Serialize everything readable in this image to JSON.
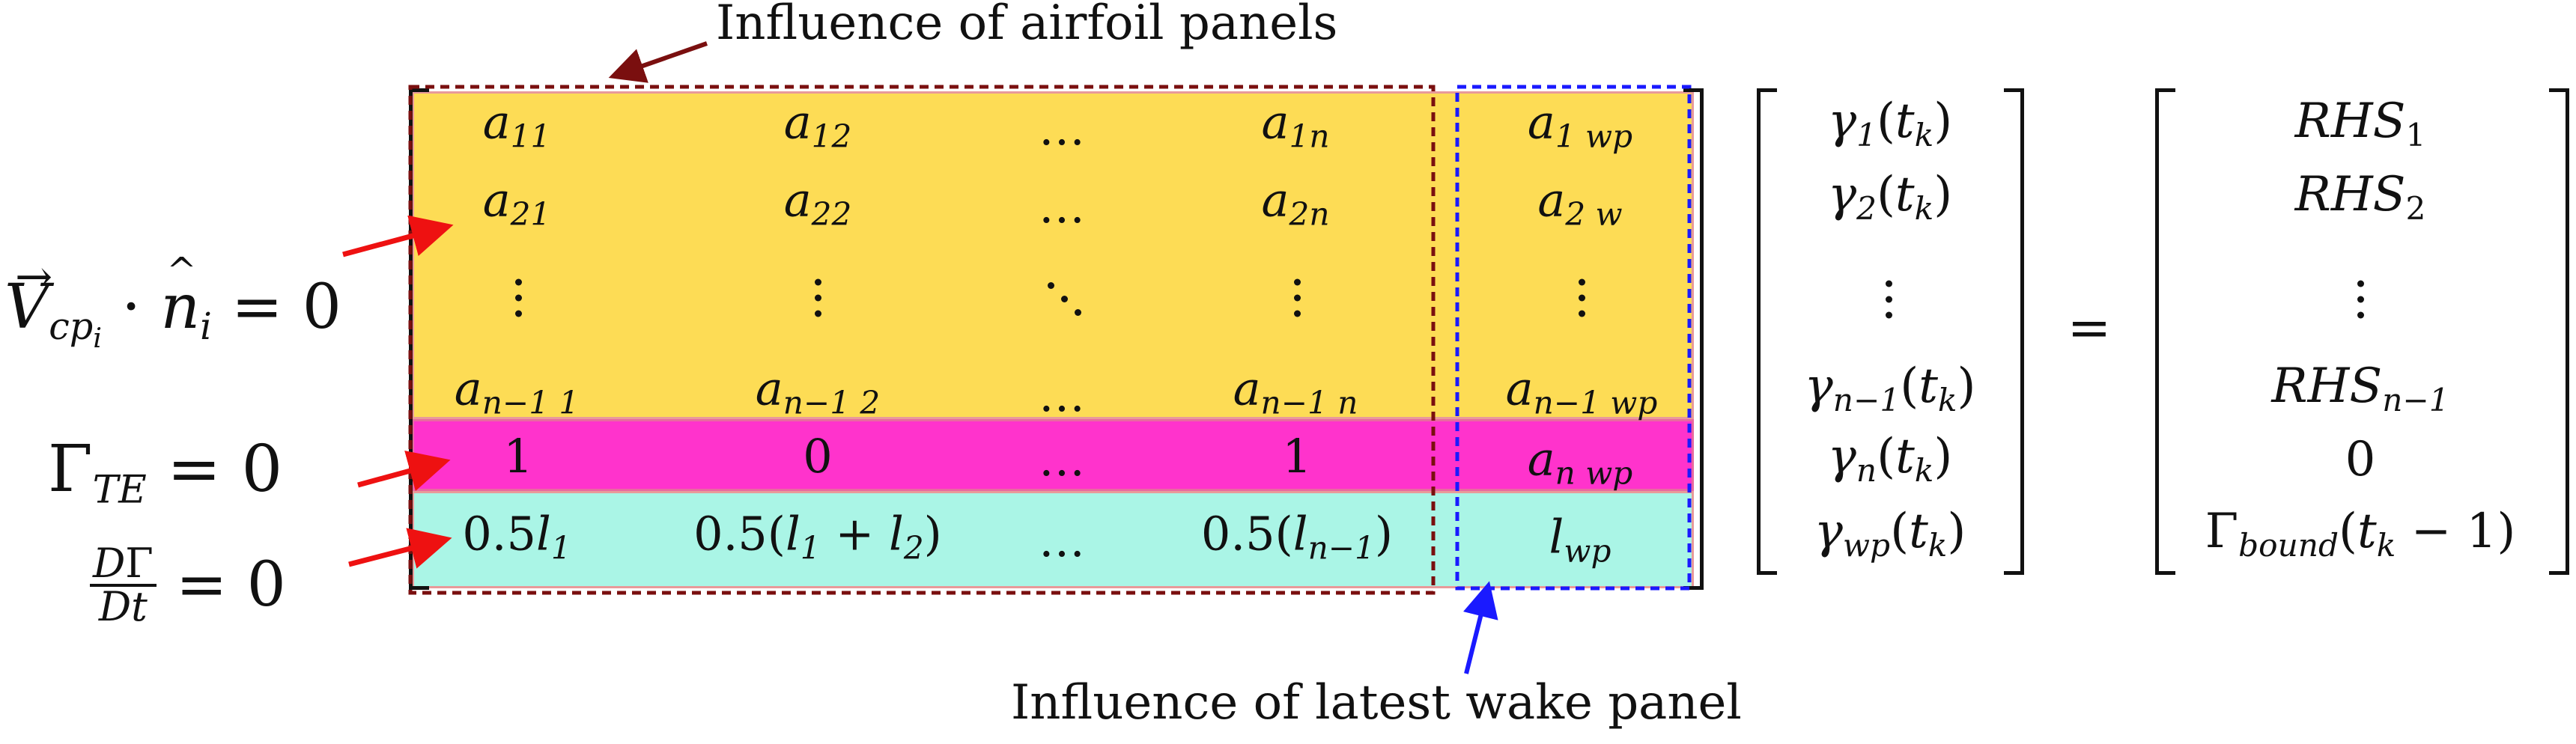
{
  "annotations": {
    "top_label": "Influence of airfoil panels",
    "bottom_label": "Influence of latest wake panel"
  },
  "conditions": {
    "no_penetration": "V·n = 0",
    "kutta": "Γ_TE = 0",
    "kelvin": "DΓ/Dt = 0"
  },
  "matrix": {
    "row1": [
      "a11",
      "a12",
      "…",
      "a1n",
      "a1 wp"
    ],
    "row2": [
      "a21",
      "a22",
      "…",
      "a2n",
      "a2 w"
    ],
    "row_last_airfoil": [
      "an−1 1",
      "an−1 2",
      "…",
      "an−1 n",
      "an−1 wp"
    ],
    "kutta_row": [
      "1",
      "0",
      "…",
      "1",
      "an wp"
    ],
    "kelvin_row": [
      "0.5l1",
      "0.5(l1 + l2)",
      "…",
      "0.5(ln−1)",
      "lwp"
    ]
  },
  "unknowns": [
    "γ1(tk)",
    "γ2(tk)",
    "⋮",
    "γn−1(tk)",
    "γn(tk)",
    "γwp(tk)"
  ],
  "equals": "=",
  "rhs": [
    "RHS1",
    "RHS2",
    "⋮",
    "RHSn−1",
    "0",
    "Γbound(tk − 1)"
  ],
  "colors": {
    "airfoil_rows": "#fddc55",
    "kutta_row": "#ff33cc",
    "kelvin_row": "#aaf5e6",
    "airfoil_box": "#7a0f0f",
    "wake_box": "#1a1aff",
    "red_arrow": "#ee1111",
    "blue_arrow": "#1a1aff",
    "dark_arrow": "#7a0f0f"
  }
}
